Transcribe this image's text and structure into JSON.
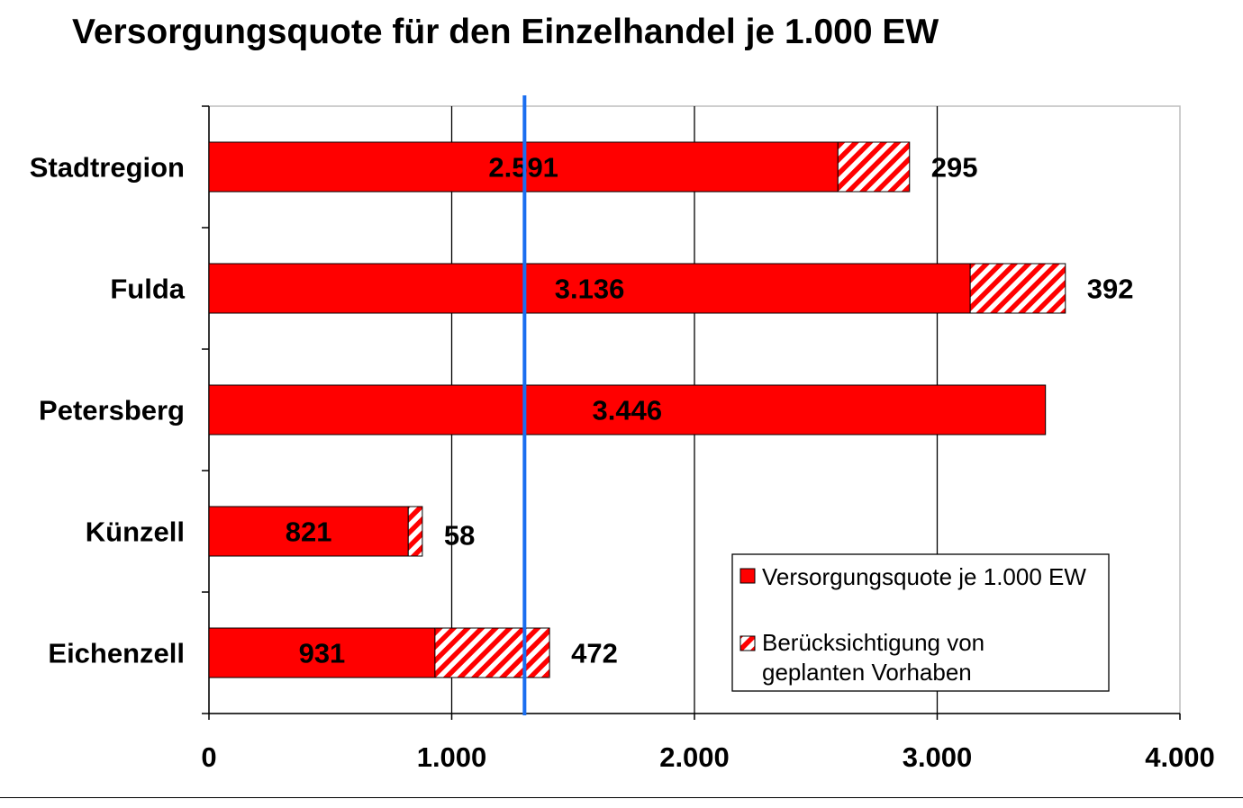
{
  "chart_data": {
    "type": "bar",
    "orientation": "horizontal",
    "stacked": true,
    "title": "Versorgungsquote für den Einzelhandel je 1.000 EW",
    "categories": [
      "Stadtregion",
      "Fulda",
      "Petersberg",
      "Künzell",
      "Eichenzell"
    ],
    "series": [
      {
        "name": "Versorgungsquote je 1.000 EW",
        "values": [
          2591,
          3136,
          3446,
          821,
          931
        ],
        "labels": [
          "2.591",
          "3.136",
          "3.446",
          "821",
          "931"
        ],
        "color": "#ff0000",
        "fill": "solid"
      },
      {
        "name": "Berücksichtigung von geplanten Vorhaben",
        "values": [
          295,
          392,
          0,
          58,
          472
        ],
        "labels": [
          "295",
          "392",
          "",
          "58",
          "472"
        ],
        "color": "#ff0000",
        "fill": "hatched"
      }
    ],
    "xlim": [
      0,
      4000
    ],
    "xticks": [
      0,
      1000,
      2000,
      3000,
      4000
    ],
    "xtick_labels": [
      "0",
      "1.000",
      "2.000",
      "3.000",
      "4.000"
    ],
    "grid": "vertical",
    "reference_line": {
      "value": 1300,
      "color": "#1a6ef0"
    },
    "legend": "bottom-right"
  }
}
